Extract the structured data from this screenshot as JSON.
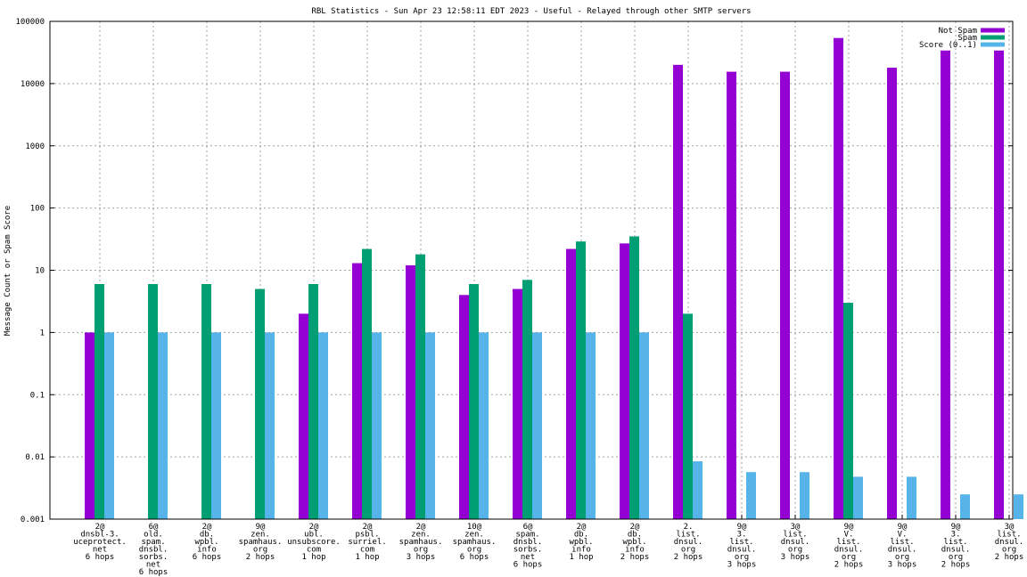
{
  "chart_data": {
    "type": "bar",
    "title": "RBL Statistics - Sun Apr 23 12:58:11 EDT 2023 - Useful - Relayed through other SMTP servers",
    "xlabel": "",
    "ylabel": "Message Count or Spam Score",
    "yscale": "log",
    "ylim": [
      0.001,
      100000
    ],
    "yticks": [
      "0.001",
      "0.01",
      "0.1",
      "1",
      "10",
      "100",
      "1000",
      "10000",
      "100000"
    ],
    "grid": true,
    "legend_position": "top-right",
    "categories": [
      [
        "2@",
        "dnsbl-3.",
        "uceprotect.",
        "net",
        "6 hops"
      ],
      [
        "6@",
        "old.",
        "spam.",
        "dnsbl.",
        "sorbs.",
        "net",
        "6 hops"
      ],
      [
        "2@",
        "db.",
        "wpbl.",
        "info",
        "6 hops"
      ],
      [
        "9@",
        "zen.",
        "spamhaus.",
        "org",
        "2 hops"
      ],
      [
        "2@",
        "ubl.",
        "unsubscore.",
        "com",
        "1 hop"
      ],
      [
        "2@",
        "psbl.",
        "surriel.",
        "com",
        "1 hop"
      ],
      [
        "2@",
        "zen.",
        "spamhaus.",
        "org",
        "3 hops"
      ],
      [
        "10@",
        "zen.",
        "spamhaus.",
        "org",
        "6 hops"
      ],
      [
        "6@",
        "spam.",
        "dnsbl.",
        "sorbs.",
        "net",
        "6 hops"
      ],
      [
        "2@",
        "db.",
        "wpbl.",
        "info",
        "1 hop"
      ],
      [
        "2@",
        "db.",
        "wpbl.",
        "info",
        "2 hops"
      ],
      [
        "2.",
        "list.",
        "dnsul.",
        "org",
        "2 hops"
      ],
      [
        "9@",
        "3.",
        "list.",
        "dnsul.",
        "org",
        "3 hops"
      ],
      [
        "3@",
        "list.",
        "dnsul.",
        "org",
        "3 hops"
      ],
      [
        "9@",
        "V.",
        "list.",
        "dnsul.",
        "org",
        "2 hops"
      ],
      [
        "9@",
        "V.",
        "list.",
        "dnsul.",
        "org",
        "3 hops"
      ],
      [
        "9@",
        "3.",
        "list.",
        "dnsul.",
        "org",
        "2 hops"
      ],
      [
        "3@",
        "list.",
        "dnsul.",
        "org",
        "2 hops"
      ]
    ],
    "series": [
      {
        "name": "Not Spam",
        "color": "#9400d3",
        "values": [
          1,
          null,
          null,
          null,
          2,
          13,
          12,
          4,
          5,
          22,
          27,
          20000,
          15500,
          15500,
          54000,
          18000,
          34000,
          34000
        ]
      },
      {
        "name": "Spam",
        "color": "#009e73",
        "values": [
          6,
          6,
          6,
          5,
          6,
          22,
          18,
          6,
          7,
          29,
          35,
          2,
          null,
          null,
          3,
          null,
          null,
          null
        ]
      },
      {
        "name": "Score (0..1)",
        "color": "#56b4e9",
        "values": [
          1,
          1,
          1,
          1,
          1,
          1,
          1,
          1,
          1,
          1,
          1,
          0.0085,
          0.0057,
          0.0057,
          0.0048,
          0.0048,
          0.0025,
          0.0025
        ]
      }
    ]
  }
}
